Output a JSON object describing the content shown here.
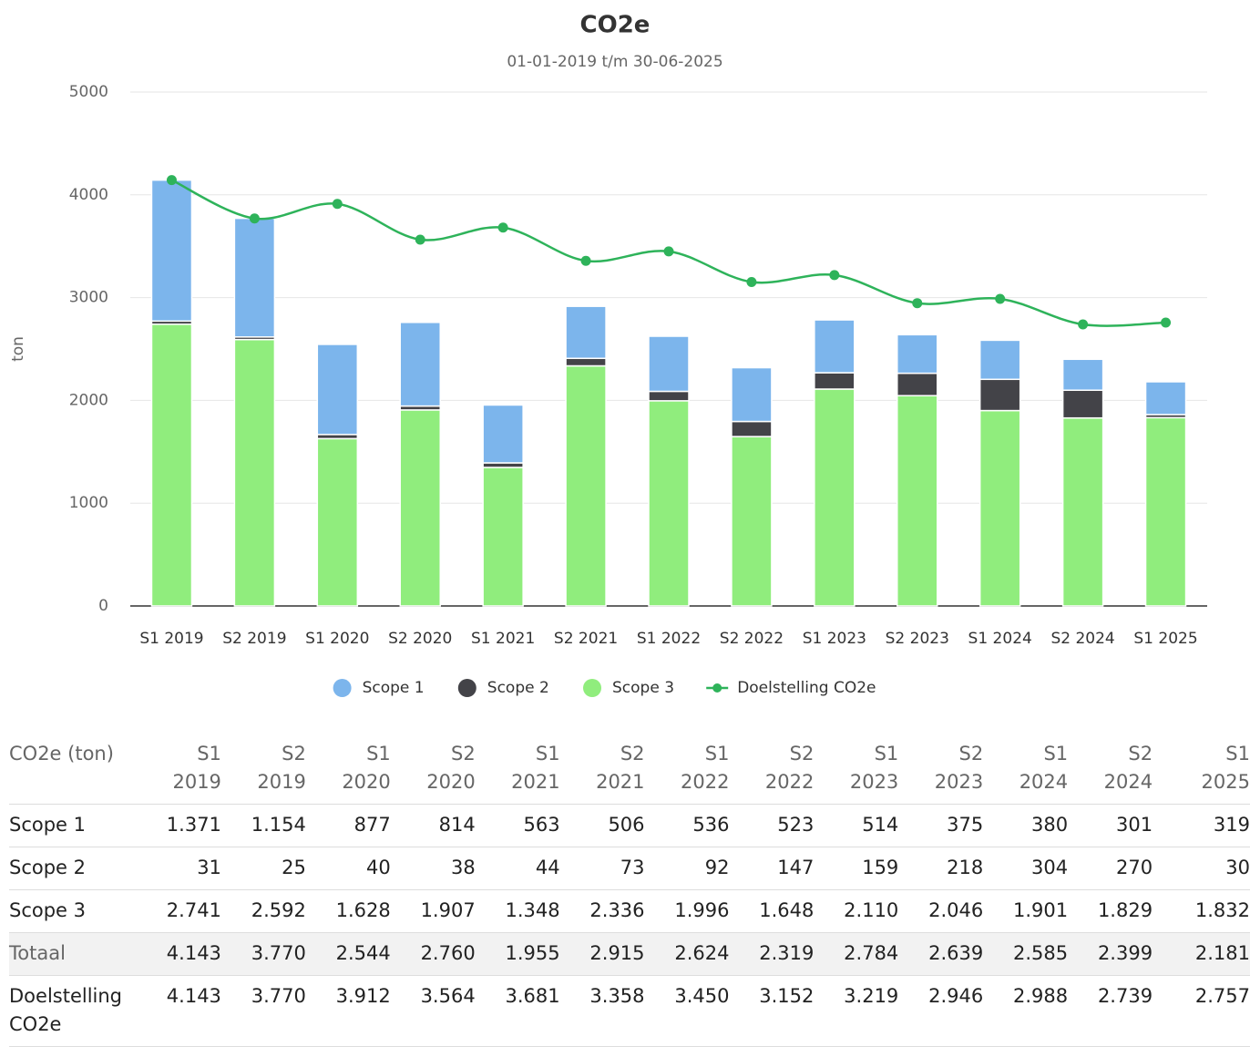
{
  "chart_data": {
    "type": "bar",
    "stacked": true,
    "title": "CO2e",
    "subtitle": "01-01-2019 t/m 30-06-2025",
    "ylabel": "ton",
    "categories": [
      "S1 2019",
      "S2 2019",
      "S1 2020",
      "S2 2020",
      "S1 2021",
      "S2 2021",
      "S1 2022",
      "S2 2022",
      "S1 2023",
      "S2 2023",
      "S1 2024",
      "S2 2024",
      "S1 2025"
    ],
    "ylim": [
      0,
      5000
    ],
    "yticks": [
      0,
      1000,
      2000,
      3000,
      4000,
      5000
    ],
    "grid": true,
    "legend": "bottom",
    "series": [
      {
        "name": "Scope 1",
        "color": "#7cb5ec",
        "values": [
          1371,
          1154,
          877,
          814,
          563,
          506,
          536,
          523,
          514,
          375,
          380,
          301,
          319
        ],
        "value_labels": [
          "1.371",
          "1.154",
          "877",
          "814",
          "563",
          "506",
          "536",
          "523",
          "514",
          "375",
          "380",
          "301",
          "319"
        ]
      },
      {
        "name": "Scope 2",
        "color": "#434348",
        "values": [
          31,
          25,
          40,
          38,
          44,
          73,
          92,
          147,
          159,
          218,
          304,
          270,
          30
        ],
        "value_labels": [
          "31",
          "25",
          "40",
          "38",
          "44",
          "73",
          "92",
          "147",
          "159",
          "218",
          "304",
          "270",
          "30"
        ]
      },
      {
        "name": "Scope 3",
        "color": "#90ed7d",
        "values": [
          2741,
          2592,
          1628,
          1907,
          1348,
          2336,
          1996,
          1648,
          2110,
          2046,
          1901,
          1829,
          1832
        ],
        "value_labels": [
          "2.741",
          "2.592",
          "1.628",
          "1.907",
          "1.348",
          "2.336",
          "1.996",
          "1.648",
          "2.110",
          "2.046",
          "1.901",
          "1.829",
          "1.832"
        ]
      },
      {
        "name": "Doelstelling CO2e",
        "type": "line",
        "color": "#2eb35a",
        "values": [
          4143,
          3770,
          3912,
          3564,
          3681,
          3358,
          3450,
          3152,
          3219,
          2946,
          2988,
          2739,
          2757
        ],
        "value_labels": [
          "4.143",
          "3.770",
          "3.912",
          "3.564",
          "3.681",
          "3.358",
          "3.450",
          "3.152",
          "3.219",
          "2.946",
          "2.988",
          "2.739",
          "2.757"
        ]
      }
    ],
    "table": {
      "header": "CO2e (ton)",
      "total_label": "Totaal",
      "totals": [
        "4.143",
        "3.770",
        "2.544",
        "2.760",
        "1.955",
        "2.915",
        "2.624",
        "2.319",
        "2.784",
        "2.639",
        "2.585",
        "2.399",
        "2.181"
      ]
    }
  }
}
